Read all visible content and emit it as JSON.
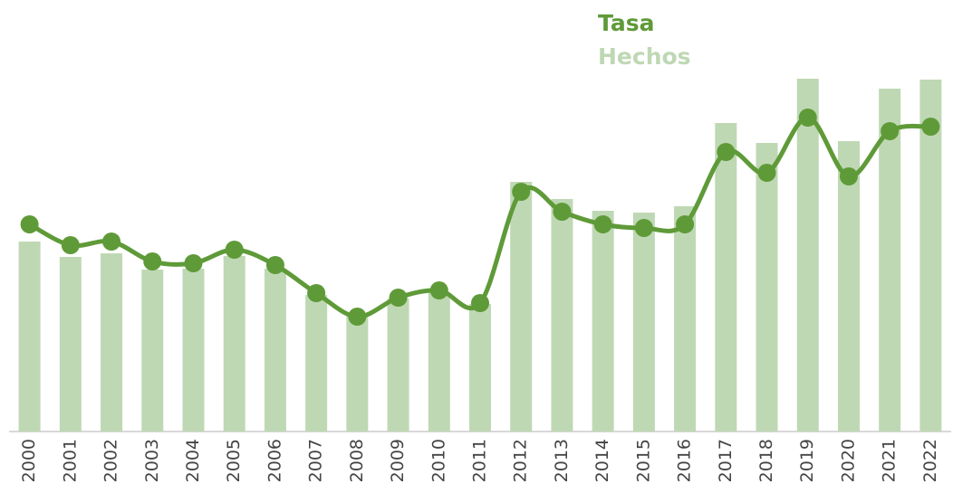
{
  "chart_data": {
    "type": "bar",
    "categories": [
      "2000",
      "2001",
      "2002",
      "2003",
      "2004",
      "2005",
      "2006",
      "2007",
      "2008",
      "2009",
      "2010",
      "2011",
      "2012",
      "2013",
      "2014",
      "2015",
      "2016",
      "2017",
      "2018",
      "2019",
      "2020",
      "2021",
      "2022"
    ],
    "series": [
      {
        "name": "Tasa",
        "type": "line",
        "color": "#5f9a38",
        "values": [
          229,
          206,
          210,
          188,
          186,
          201,
          184,
          153,
          127,
          148,
          156,
          142,
          265,
          243,
          229,
          225,
          229,
          309,
          286,
          347,
          282,
          332,
          337
        ]
      },
      {
        "name": "Hechos",
        "type": "bar",
        "color": "#bfd8b4",
        "values": [
          210,
          193,
          197,
          179,
          180,
          194,
          180,
          151,
          127,
          147,
          154,
          141,
          276,
          257,
          244,
          242,
          249,
          341,
          319,
          390,
          321,
          379,
          389
        ]
      }
    ],
    "ylim": [
      0,
      400
    ]
  }
}
